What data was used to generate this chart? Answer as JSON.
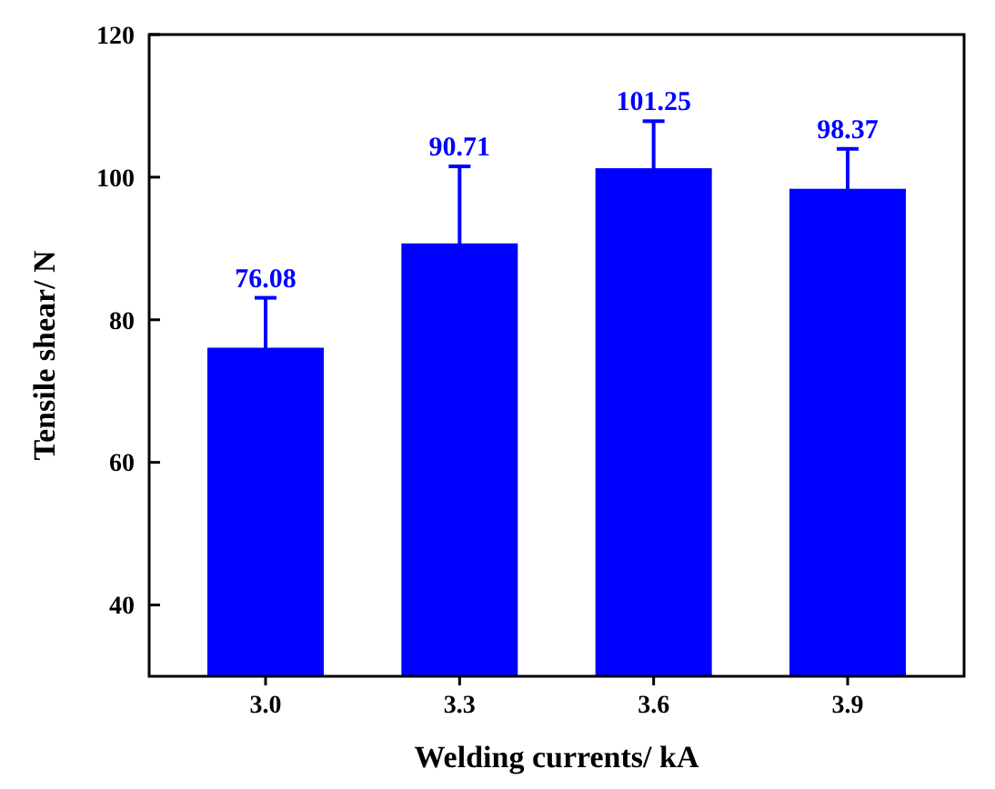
{
  "chart_data": {
    "type": "bar",
    "xlabel": "Welding currents/ kA",
    "ylabel": "Tensile shear/ N",
    "categories": [
      "3.0",
      "3.3",
      "3.6",
      "3.9"
    ],
    "values": [
      76.08,
      90.71,
      101.25,
      98.37
    ],
    "errors": [
      7.0,
      10.8,
      6.6,
      5.6
    ],
    "color": "#0000ff",
    "data_labels": true,
    "ylim": [
      30,
      120
    ],
    "yticks": [
      40,
      60,
      80,
      100,
      120
    ],
    "grid": false
  }
}
